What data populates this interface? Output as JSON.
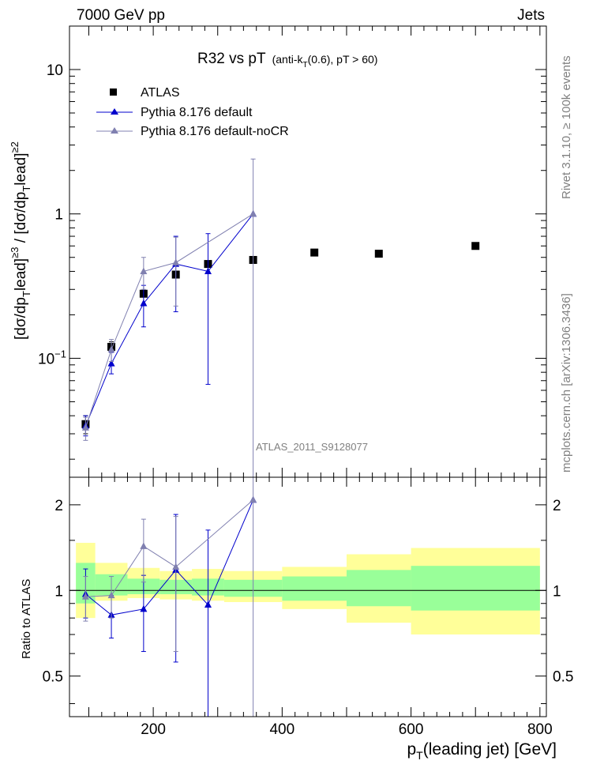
{
  "header": {
    "left": "7000 GeV pp",
    "right": "Jets"
  },
  "side": {
    "rivet": "Rivet 3.1.10, ≥ 100k events",
    "mcplots": "mcplots.cern.ch [arXiv:1306.3436]"
  },
  "colors": {
    "atlas": "#000000",
    "pythia_default": "#0000cc",
    "pythia_nocr": "#8080b0",
    "band_inner": "#99ff99",
    "band_outer": "#ffff99"
  },
  "chart_data": [
    {
      "type": "scatter",
      "title": "R32 vs pT",
      "subtitle_parts": [
        "(anti-k",
        "T",
        "(0.6), pT > 60)"
      ],
      "ylabel_parts": [
        "[dσ/dp",
        "T",
        "lead]",
        "≥3",
        " / [dσ/dp",
        "T",
        "lead]",
        "≥2"
      ],
      "yscale": "log",
      "ylim": [
        0.015,
        20
      ],
      "yticks": [
        {
          "v": 0.1,
          "label": "10",
          "exp": "−1"
        },
        {
          "v": 1,
          "label": "1"
        },
        {
          "v": 10,
          "label": "10"
        }
      ],
      "watermark": "ATLAS_2011_S9128077",
      "legend": [
        "ATLAS",
        "Pythia 8.176 default",
        "Pythia 8.176 default-noCR"
      ],
      "series": [
        {
          "name": "ATLAS",
          "marker": "square",
          "points": [
            {
              "x": 95,
              "y": 0.035,
              "ylo": 0.03,
              "yhi": 0.04
            },
            {
              "x": 135,
              "y": 0.12,
              "ylo": 0.11,
              "yhi": 0.13
            },
            {
              "x": 185,
              "y": 0.28
            },
            {
              "x": 235,
              "y": 0.38
            },
            {
              "x": 285,
              "y": 0.45
            },
            {
              "x": 355,
              "y": 0.48
            },
            {
              "x": 450,
              "y": 0.54
            },
            {
              "x": 550,
              "y": 0.53
            },
            {
              "x": 700,
              "y": 0.6
            }
          ]
        },
        {
          "name": "Pythia 8.176 default",
          "marker": "triangle",
          "points": [
            {
              "x": 95,
              "y": 0.034,
              "ylo": 0.029,
              "yhi": 0.04
            },
            {
              "x": 135,
              "y": 0.092,
              "ylo": 0.078,
              "yhi": 0.11
            },
            {
              "x": 185,
              "y": 0.24,
              "ylo": 0.165,
              "yhi": 0.32
            },
            {
              "x": 235,
              "y": 0.45,
              "ylo": 0.21,
              "yhi": 0.7
            },
            {
              "x": 285,
              "y": 0.4,
              "ylo": 0.066,
              "yhi": 0.73
            },
            {
              "x": 355,
              "y": 1.0
            }
          ]
        },
        {
          "name": "Pythia 8.176 default-noCR",
          "marker": "triangle",
          "points": [
            {
              "x": 95,
              "y": 0.033,
              "ylo": 0.027,
              "yhi": 0.039
            },
            {
              "x": 135,
              "y": 0.115,
              "ylo": 0.095,
              "yhi": 0.135
            },
            {
              "x": 185,
              "y": 0.4,
              "ylo": 0.3,
              "yhi": 0.5
            },
            {
              "x": 235,
              "y": 0.46,
              "ylo": 0.23,
              "yhi": 0.69
            },
            {
              "x": 355,
              "y": 1.0,
              "ylo": 0.001,
              "yhi": 2.4
            }
          ]
        }
      ]
    },
    {
      "type": "scatter",
      "ylabel": "Ratio to ATLAS",
      "xlabel_parts": [
        "p",
        "T",
        "(leading jet) [GeV]"
      ],
      "xlim": [
        70,
        810
      ],
      "xticks": [
        200,
        400,
        600,
        800
      ],
      "yscale": "log",
      "ylim": [
        0.36,
        2.5
      ],
      "yticks": [
        {
          "v": 0.5,
          "label": "0.5"
        },
        {
          "v": 1,
          "label": "1"
        },
        {
          "v": 2,
          "label": "2"
        }
      ],
      "bands": [
        {
          "x0": 80,
          "x1": 110,
          "outer": [
            0.8,
            1.47
          ],
          "inner": [
            0.9,
            1.25
          ]
        },
        {
          "x0": 110,
          "x1": 160,
          "outer": [
            0.92,
            1.25
          ],
          "inner": [
            0.96,
            1.14
          ]
        },
        {
          "x0": 160,
          "x1": 210,
          "outer": [
            0.94,
            1.2
          ],
          "inner": [
            0.97,
            1.1
          ]
        },
        {
          "x0": 210,
          "x1": 260,
          "outer": [
            0.93,
            1.17
          ],
          "inner": [
            0.97,
            1.09
          ]
        },
        {
          "x0": 260,
          "x1": 310,
          "outer": [
            0.92,
            1.19
          ],
          "inner": [
            0.96,
            1.1
          ]
        },
        {
          "x0": 310,
          "x1": 400,
          "outer": [
            0.91,
            1.17
          ],
          "inner": [
            0.95,
            1.09
          ]
        },
        {
          "x0": 400,
          "x1": 500,
          "outer": [
            0.86,
            1.21
          ],
          "inner": [
            0.92,
            1.12
          ]
        },
        {
          "x0": 500,
          "x1": 600,
          "outer": [
            0.77,
            1.34
          ],
          "inner": [
            0.88,
            1.18
          ]
        },
        {
          "x0": 600,
          "x1": 800,
          "outer": [
            0.7,
            1.41
          ],
          "inner": [
            0.85,
            1.22
          ]
        }
      ],
      "series": [
        {
          "name": "Pythia 8.176 default",
          "marker": "triangle",
          "points": [
            {
              "x": 95,
              "y": 0.97,
              "ylo": 0.8,
              "yhi": 1.19
            },
            {
              "x": 135,
              "y": 0.82,
              "ylo": 0.68,
              "yhi": 0.96
            },
            {
              "x": 185,
              "y": 0.86,
              "ylo": 0.61,
              "yhi": 1.13
            },
            {
              "x": 235,
              "y": 1.18,
              "ylo": 0.56,
              "yhi": 1.85
            },
            {
              "x": 285,
              "y": 0.89,
              "ylo": 0.15,
              "yhi": 1.63
            },
            {
              "x": 355,
              "y": 2.08
            }
          ]
        },
        {
          "name": "Pythia 8.176 default-noCR",
          "marker": "triangle",
          "points": [
            {
              "x": 95,
              "y": 0.95,
              "ylo": 0.78,
              "yhi": 1.12
            },
            {
              "x": 135,
              "y": 0.96,
              "ylo": 0.8,
              "yhi": 1.12
            },
            {
              "x": 185,
              "y": 1.43,
              "ylo": 1.07,
              "yhi": 1.78
            },
            {
              "x": 235,
              "y": 1.21,
              "ylo": 0.61,
              "yhi": 1.82
            },
            {
              "x": 355,
              "y": 2.08,
              "ylo": 0.001,
              "yhi": 5.0
            }
          ]
        }
      ]
    }
  ]
}
